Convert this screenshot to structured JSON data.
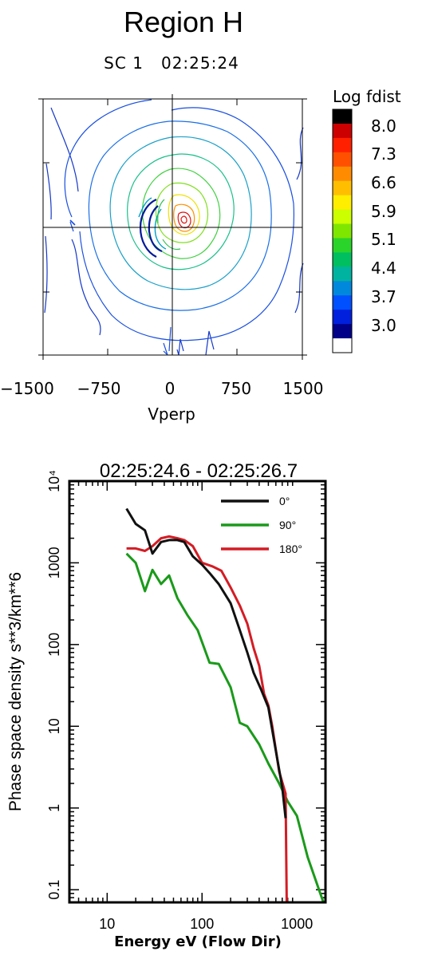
{
  "figure": {
    "title": "Region H",
    "subtitle": "SC 1   02:25:24"
  },
  "chart_data": [
    {
      "type": "heatmap",
      "subtype": "contour",
      "title": "Region H",
      "subtitle": "SC 1   02:25:24",
      "xlabel": "Vperp",
      "ylabel": "",
      "x_ticks": [
        "−1500",
        "−750",
        "0",
        "750",
        "1500"
      ],
      "xlim": [
        -1500,
        1500
      ],
      "ylim": [
        -1500,
        1500
      ],
      "crosshair": [
        0,
        0
      ],
      "colorbar": {
        "label": "Log fdist",
        "tick_labels": [
          "8.0",
          "7.3",
          "6.6",
          "5.9",
          "5.1",
          "4.4",
          "3.7",
          "3.0"
        ],
        "colors": [
          "#000000",
          "#cc0000",
          "#ff2000",
          "#ff5000",
          "#ff8c00",
          "#ffbf00",
          "#ffee00",
          "#ccff00",
          "#7fe600",
          "#2ad42a",
          "#00bf60",
          "#00b3a0",
          "#0088dd",
          "#0050ff",
          "#0020dd",
          "#000088",
          "#ffffff"
        ]
      }
    },
    {
      "type": "line",
      "title": "02:25:24.6 - 02:25:26.7",
      "xlabel": "Energy eV (Flow Dir)",
      "ylabel": "Phase space density s**3/km**6",
      "xscale": "log",
      "yscale": "log",
      "xlim": [
        4,
        2000
      ],
      "ylim": [
        0.07,
        10000
      ],
      "x_ticks": [
        "10",
        "100",
        "1000"
      ],
      "y_ticks": [
        "0.1",
        "1",
        "10",
        "100",
        "1000",
        "10⁴"
      ],
      "legend_position": "top-right",
      "series": [
        {
          "name": "0°",
          "color": "#111111",
          "points": [
            [
              16,
              4600
            ],
            [
              20,
              3000
            ],
            [
              25,
              2500
            ],
            [
              30,
              1300
            ],
            [
              37,
              1800
            ],
            [
              45,
              1900
            ],
            [
              55,
              1900
            ],
            [
              65,
              1800
            ],
            [
              80,
              1200
            ],
            [
              100,
              950
            ],
            [
              120,
              750
            ],
            [
              150,
              550
            ],
            [
              200,
              320
            ],
            [
              250,
              150
            ],
            [
              300,
              80
            ],
            [
              350,
              45
            ],
            [
              420,
              28
            ],
            [
              500,
              17
            ],
            [
              600,
              5
            ],
            [
              700,
              1.8
            ],
            [
              760,
              0.75
            ]
          ]
        },
        {
          "name": "90°",
          "color": "#1a9a1a",
          "points": [
            [
              16,
              1300
            ],
            [
              20,
              1000
            ],
            [
              25,
              450
            ],
            [
              30,
              820
            ],
            [
              37,
              550
            ],
            [
              45,
              700
            ],
            [
              55,
              370
            ],
            [
              70,
              230
            ],
            [
              90,
              150
            ],
            [
              120,
              60
            ],
            [
              150,
              58
            ],
            [
              200,
              30
            ],
            [
              250,
              11
            ],
            [
              300,
              10
            ],
            [
              400,
              6
            ],
            [
              500,
              3.5
            ],
            [
              650,
              2
            ],
            [
              800,
              1.2
            ],
            [
              1000,
              0.8
            ],
            [
              1300,
              0.25
            ],
            [
              1900,
              0.07
            ]
          ]
        },
        {
          "name": "180°",
          "color": "#d41c24",
          "points": [
            [
              16,
              1500
            ],
            [
              20,
              1500
            ],
            [
              25,
              1400
            ],
            [
              30,
              1600
            ],
            [
              37,
              2000
            ],
            [
              45,
              2100
            ],
            [
              55,
              2000
            ],
            [
              65,
              1900
            ],
            [
              80,
              1600
            ],
            [
              100,
              1000
            ],
            [
              130,
              900
            ],
            [
              160,
              800
            ],
            [
              200,
              500
            ],
            [
              250,
              300
            ],
            [
              300,
              180
            ],
            [
              350,
              90
            ],
            [
              400,
              55
            ],
            [
              450,
              25
            ],
            [
              500,
              18
            ],
            [
              550,
              10
            ],
            [
              650,
              2.8
            ],
            [
              760,
              1.5
            ],
            [
              780,
              0.07
            ],
            [
              1150,
              0.07
            ],
            [
              1200,
              0.07
            ]
          ]
        }
      ]
    }
  ]
}
